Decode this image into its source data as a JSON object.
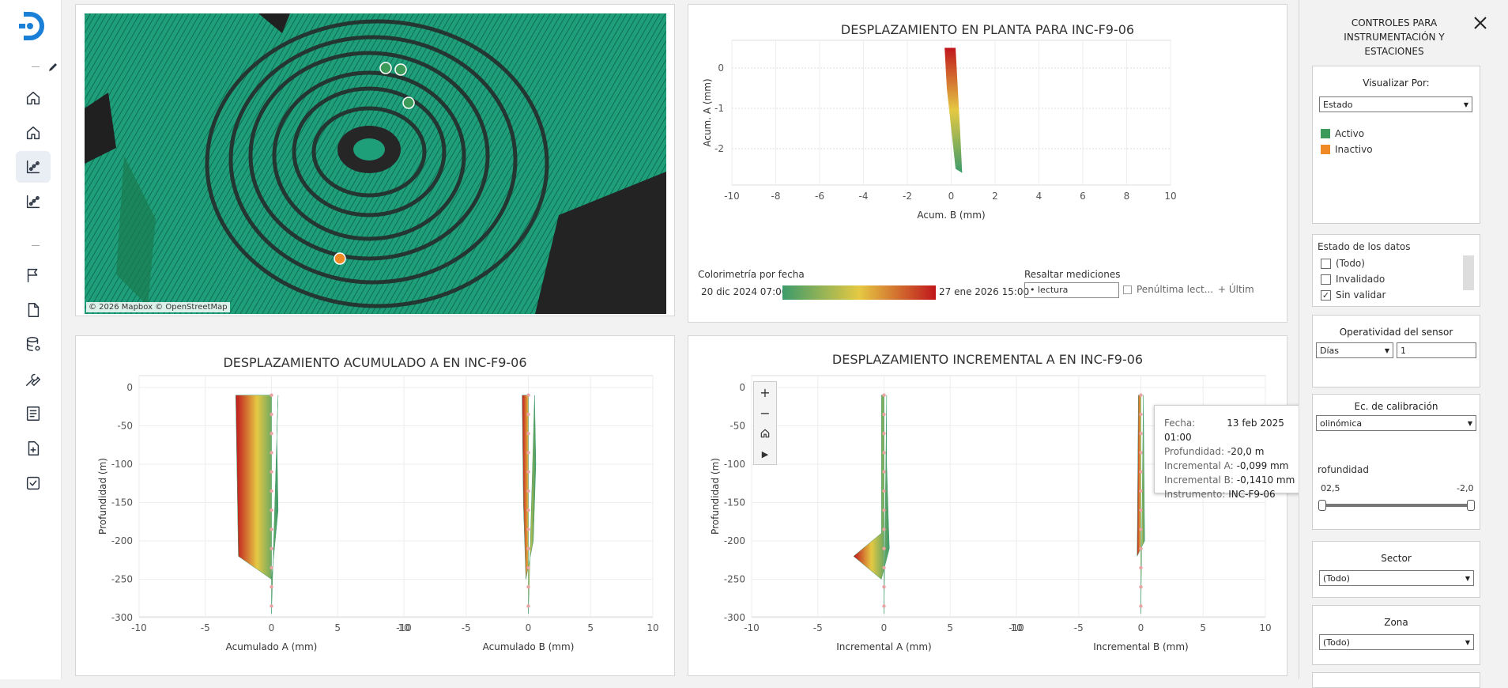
{
  "map": {
    "attribution": "© 2026 Mapbox  © OpenStreetMap"
  },
  "plan_chart": {
    "title": "DESPLAZAMIENTO EN PLANTA PARA INC-F9-06",
    "xlabel": "Acum. B (mm)",
    "ylabel": "Acum. A (mm)",
    "xticks": [
      "-10",
      "-8",
      "-6",
      "-4",
      "-2",
      "0",
      "2",
      "4",
      "6",
      "8",
      "10"
    ],
    "yticks": [
      "0",
      "-1",
      "-2"
    ],
    "legend_title": "Colorimetría por fecha",
    "date_start": "20 dic 2024 07:00",
    "date_end": "27 ene 2026 15:00",
    "highlight_title": "Resaltar mediciones",
    "highlight_value": "lectura",
    "penultima": "Penúltima lect...",
    "ultima": "Últim"
  },
  "acum_chart": {
    "title": "DESPLAZAMIENTO ACUMULADO A EN INC-F9-06",
    "ylabel": "Profundidad (m)",
    "xlabel_a": "Acumulado A (mm)",
    "xlabel_b": "Acumulado B (mm)",
    "yticks": [
      "0",
      "-50",
      "-100",
      "-150",
      "-200",
      "-250",
      "-300"
    ],
    "xticks": [
      "-10",
      "-5",
      "0",
      "5",
      "10"
    ]
  },
  "inc_chart": {
    "title": "DESPLAZAMIENTO INCREMENTAL A EN INC-F9-06",
    "ylabel": "Profundidad (m)",
    "xlabel_a": "Incremental A (mm)",
    "xlabel_b": "Incremental B (mm)",
    "yticks": [
      "0",
      "-50",
      "-100",
      "-150",
      "-200",
      "-250",
      "-300"
    ],
    "xticks": [
      "-10",
      "-5",
      "0",
      "5",
      "10"
    ]
  },
  "tooltip": {
    "fecha_k": "Fecha:",
    "fecha_v": "13 feb 2025 01:00",
    "prof_k": "Profundidad:",
    "prof_v": "-20,0 m",
    "inca_k": "Incremental A:",
    "inca_v": "-0,099 mm",
    "incb_k": "Incremental B:",
    "incb_v": "-0,1410 mm",
    "inst_k": "Instrumento:",
    "inst_v": "INC-F9-06"
  },
  "controls": {
    "title": "CONTROLES PARA INSTRUMENTACIÓN Y ESTACIONES",
    "visualizar_label": "Visualizar Por:",
    "visualizar_value": "Estado",
    "legend_activo": "Activo",
    "legend_inactivo": "Inactivo",
    "activo_color": "#3d9b5a",
    "inactivo_color": "#f08a24",
    "estado_label": "Estado de los datos",
    "estado_items": [
      "(Todo)",
      "Invalidado",
      "Sin validar"
    ],
    "estado_checked": [
      "",
      "",
      "✓"
    ],
    "operatividad_label": "Operatividad del sensor",
    "operatividad_unit": "Días",
    "operatividad_value": "1",
    "calibracion_label": "Ec. de calibración",
    "calibracion_value": "olinómica",
    "profundidad_label": "rofundidad",
    "profundidad_min": "02,5",
    "profundidad_max": "-2,0",
    "sector_label": "Sector",
    "sector_value": "(Todo)",
    "zona_label": "Zona",
    "zona_value": "(Todo)"
  }
}
